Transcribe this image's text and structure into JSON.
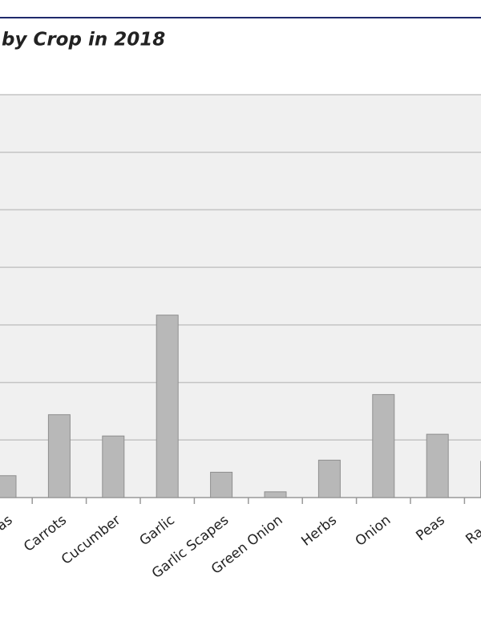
{
  "chart_data": {
    "type": "bar",
    "title": "by Crop in 2018",
    "categories": [
      "as",
      "Carrots",
      "Cucumber",
      "Garlic",
      "Garlic Scapes",
      "Green Onion",
      "Herbs",
      "Onion",
      "Peas",
      "Radis"
    ],
    "values": [
      0.38,
      1.44,
      1.07,
      3.17,
      0.44,
      0.1,
      0.65,
      1.79,
      1.1,
      0.63
    ],
    "color": "#b8b8b8",
    "ylim": [
      0,
      7
    ],
    "yticks": [
      0,
      1,
      2,
      3,
      4,
      5,
      6,
      7
    ],
    "grid": true
  }
}
